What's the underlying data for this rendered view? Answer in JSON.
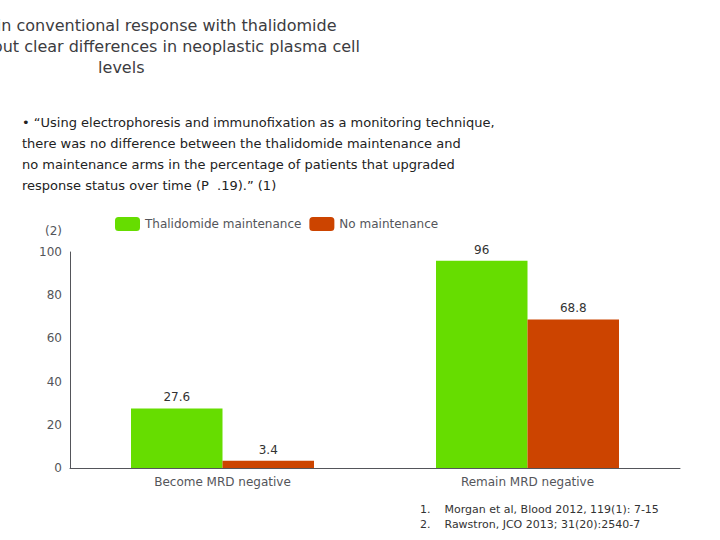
{
  "chart_data": {
    "type": "bar",
    "title": "No change in conventional response with thalidomide\nmaintenance but clear differences in neoplastic plasma cell\nlevels",
    "annotations": [
      "• “Using electrophoresis and immunofixation as a monitoring technique,",
      "there was no difference between the thalidomide maintenance and",
      "no maintenance arms in the percentage of patients that upgraded",
      "response status over time (P  .19).” (1)"
    ],
    "footnotes": [
      "1.    Morgan et al, Blood 2012, 119(1): 7-15",
      "2.    Rawstron, JCO 2013; 31(20):2540-7"
    ],
    "ylabel": "(2)",
    "categories": [
      "Become MRD negative",
      "Remain MRD negative"
    ],
    "series": [
      {
        "name": "Thalidomide maintenance",
        "color": "#66dd00",
        "values": [
          27.6,
          96
        ]
      },
      {
        "name": "No maintenance",
        "color": "#cc4400",
        "values": [
          3.4,
          68.8
        ]
      }
    ],
    "ylim": [
      0,
      100
    ],
    "yticks": [
      0,
      20,
      40,
      60,
      80,
      100
    ],
    "grid": false,
    "legend": "upper left",
    "data_labels": true
  }
}
